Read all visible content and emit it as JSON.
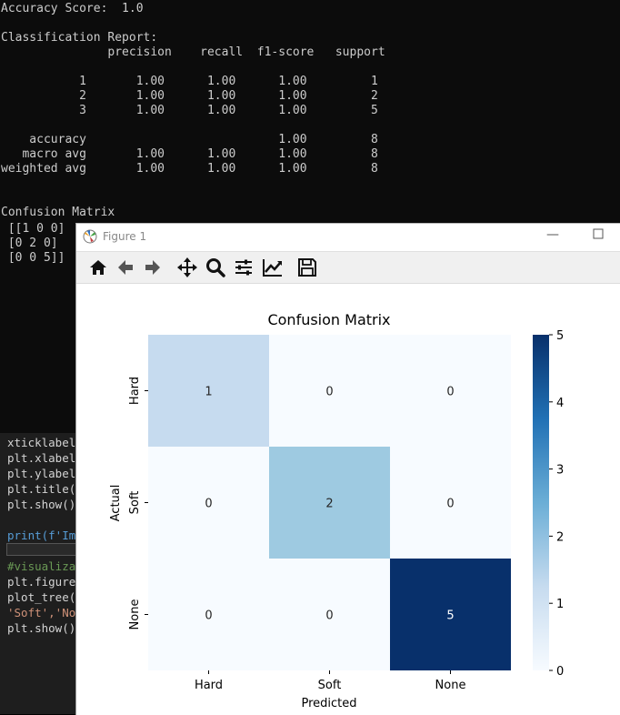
{
  "terminal": {
    "lines": [
      "Accuracy Score:  1.0",
      "",
      "Classification Report:",
      "               precision    recall  f1-score   support",
      "",
      "           1       1.00      1.00      1.00         1",
      "           2       1.00      1.00      1.00         2",
      "           3       1.00      1.00      1.00         5",
      "",
      "    accuracy                           1.00         8",
      "   macro avg       1.00      1.00      1.00         8",
      "weighted avg       1.00      1.00      1.00         8",
      "",
      "",
      "Confusion Matrix",
      " [[1 0 0]",
      " [0 2 0]",
      " [0 0 5]]"
    ]
  },
  "editor": {
    "lines": [
      "xticklabel",
      "plt.xlabel",
      "plt.ylabel",
      "plt.title(",
      "plt.show()",
      "",
      "print(f'Im",
      "",
      "#visualiza",
      "plt.figure",
      "plot_tree(",
      "'Soft','No",
      "plt.show()"
    ]
  },
  "window": {
    "title": "Figure 1",
    "minimize_glyph": "—"
  },
  "toolbar": {
    "icons": [
      "home-icon",
      "back-arrow-icon",
      "forward-arrow-icon",
      "pan-icon",
      "zoom-icon",
      "configure-subplots-icon",
      "edit-axis-icon",
      "save-icon"
    ]
  },
  "colors": {
    "cmap_low": "#f7fbff",
    "cmap_high": "#08306b"
  },
  "chart_data": {
    "type": "heatmap",
    "title": "Confusion Matrix",
    "xlabel": "Predicted",
    "ylabel": "Actual",
    "x_categories": [
      "Hard",
      "Soft",
      "None"
    ],
    "y_categories": [
      "Hard",
      "Soft",
      "None"
    ],
    "values": [
      [
        1,
        0,
        0
      ],
      [
        0,
        2,
        0
      ],
      [
        0,
        0,
        5
      ]
    ],
    "colorbar": {
      "min": 0,
      "max": 5,
      "ticks": [
        "0",
        "1",
        "2",
        "3",
        "4",
        "5"
      ]
    },
    "cell_colors": [
      [
        "#c6dbef",
        "#f7fbff",
        "#f7fbff"
      ],
      [
        "#f7fbff",
        "#9ecae1",
        "#f7fbff"
      ],
      [
        "#f7fbff",
        "#f7fbff",
        "#08306b"
      ]
    ],
    "annotation_colors": [
      [
        "#262626",
        "#262626",
        "#262626"
      ],
      [
        "#262626",
        "#262626",
        "#262626"
      ],
      [
        "#262626",
        "#262626",
        "#ffffff"
      ]
    ]
  }
}
